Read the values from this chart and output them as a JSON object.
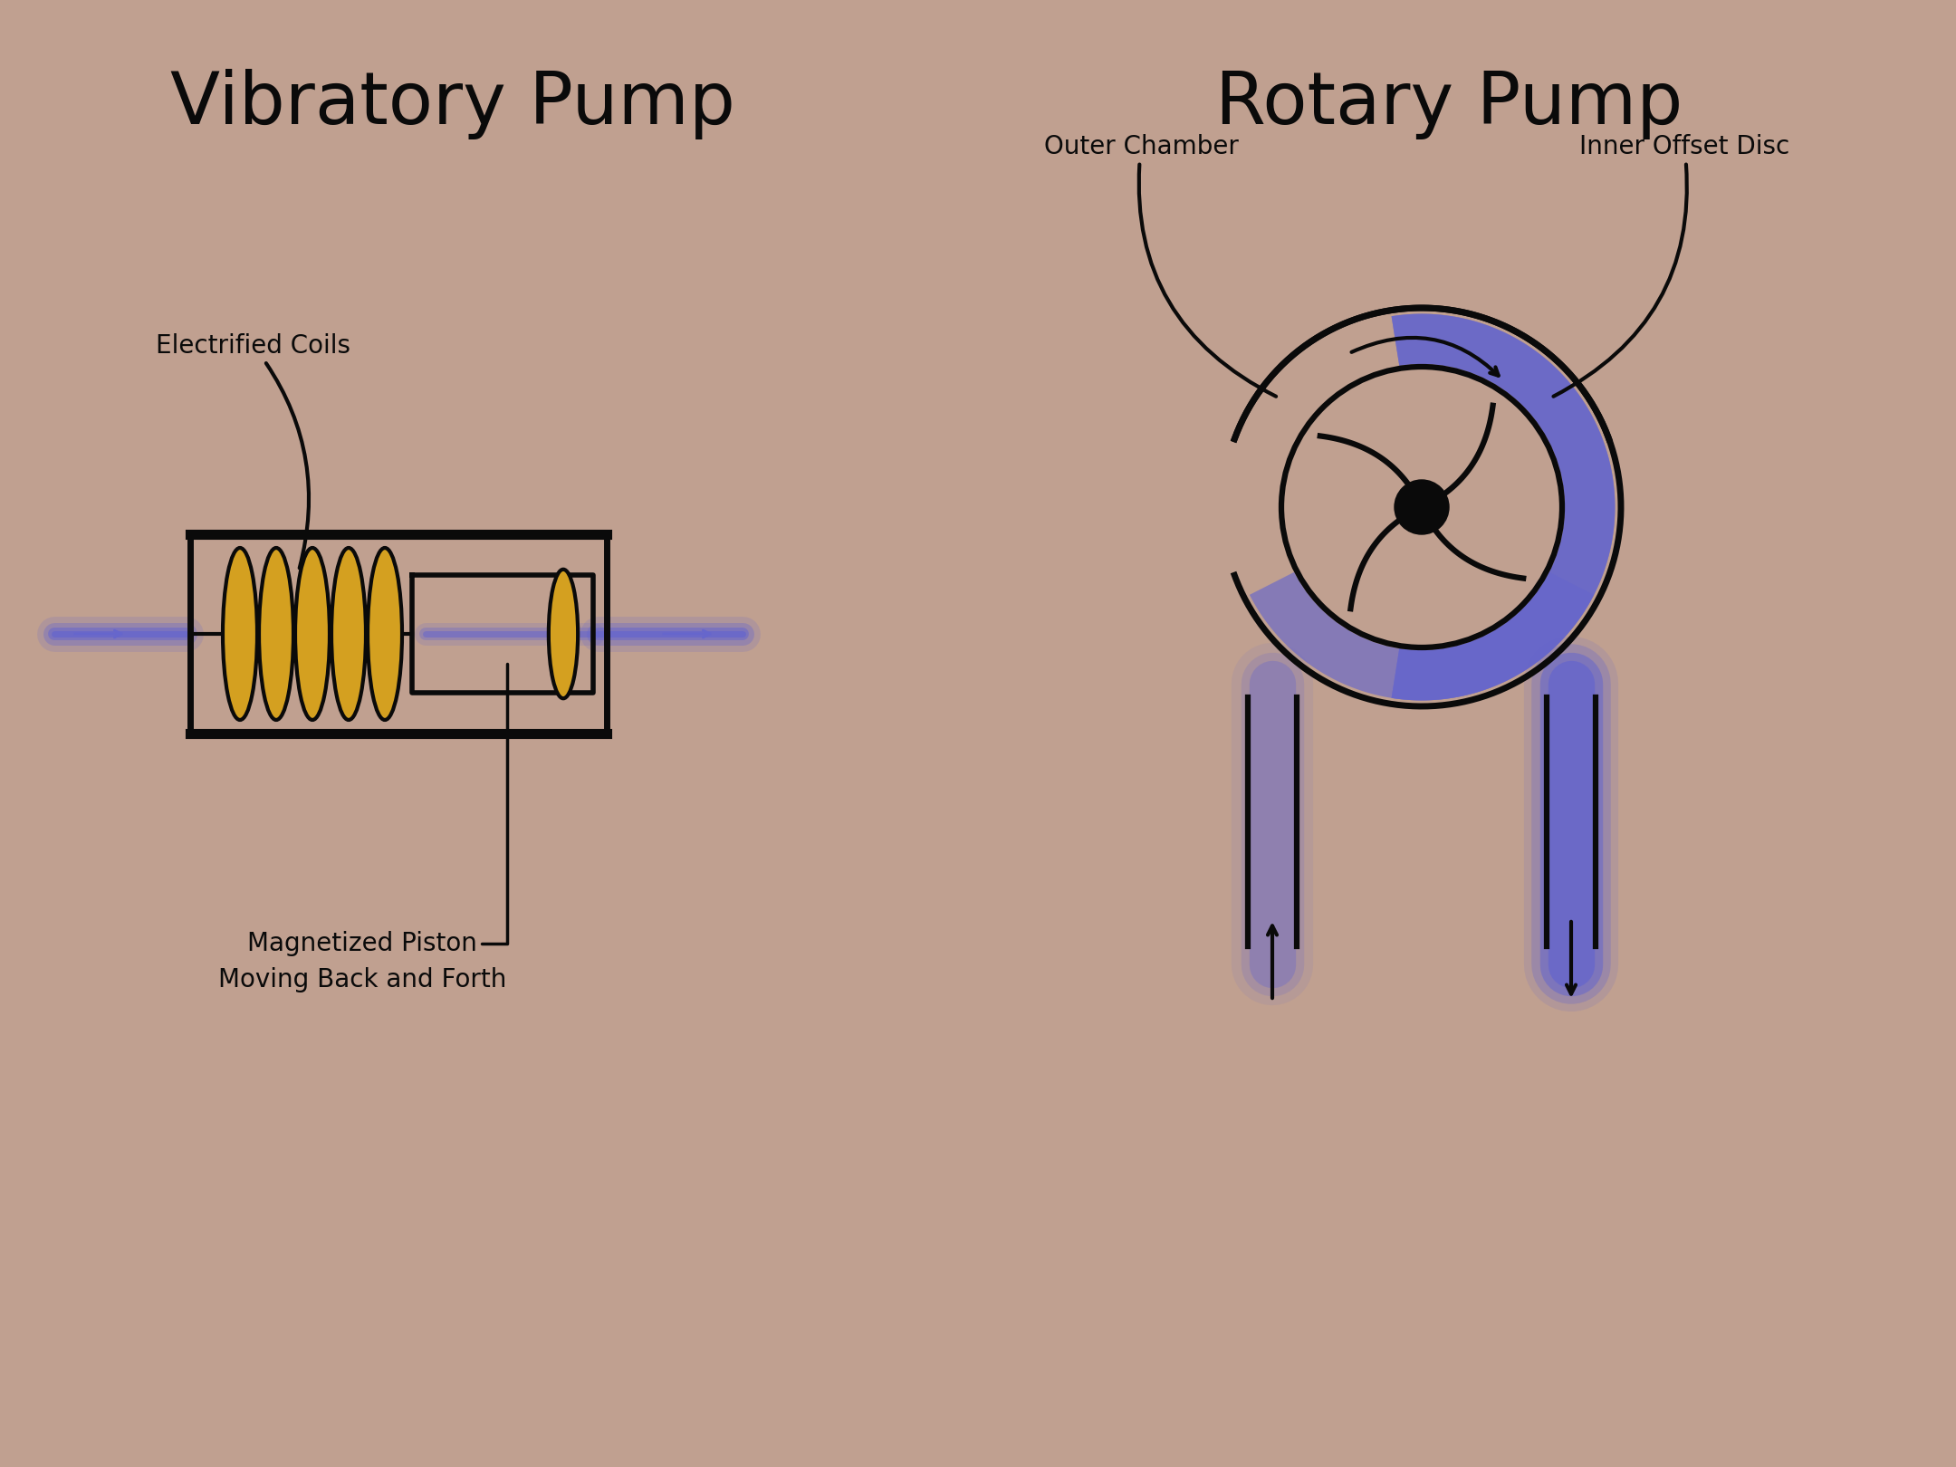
{
  "bg_color": "#c0a090",
  "title_vib": "Vibratory Pump",
  "title_rot": "Rotary Pump",
  "label_coils": "Electrified Coils",
  "label_piston1": "Magnetized Piston",
  "label_piston2": "Moving Back and Forth",
  "label_outer": "Outer Chamber",
  "label_inner": "Inner Offset Disc",
  "blue_fill": "#6666cc",
  "blue_glow": "#9999dd",
  "coil_color": "#d4a020",
  "coil_dark": "#a07010",
  "black": "#0a0a0a",
  "title_fontsize": 58,
  "label_fontsize": 20
}
